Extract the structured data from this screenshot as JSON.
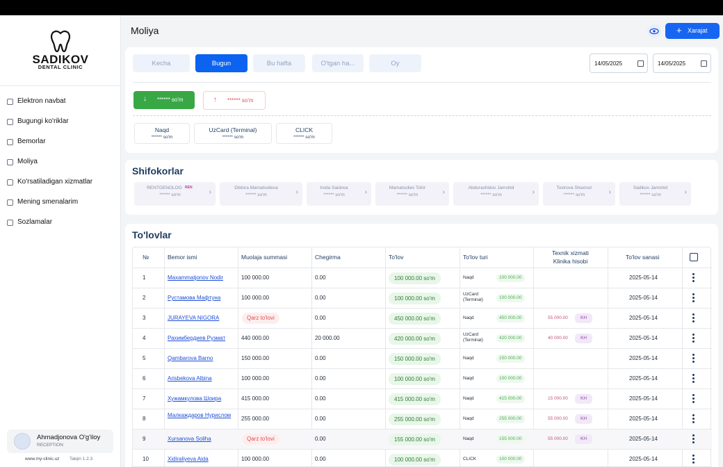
{
  "sidebar": {
    "logo_title": "SADIKOV",
    "logo_subtitle": "DENTAL CLINIC",
    "menu": [
      "Elektron navbat",
      "Bugungi ko'riklar",
      "Bemorlar",
      "Moliya",
      "Ko'rsatiladigan xizmatlar",
      "Mening smenalarim",
      "Sozlamalar"
    ],
    "user": {
      "name": "Ahmadjonova O'g'iloy",
      "role": "RECEPTION"
    },
    "footer": {
      "site": "www.my-clinic.uz",
      "version": "Talqin 1.2.3"
    }
  },
  "header": {
    "title": "Moliya",
    "button": "Xarajat"
  },
  "filters": {
    "periods": [
      "Kecha",
      "Bugun",
      "Bu hafta",
      "O'tgan ha...",
      "Oy"
    ],
    "date_from": "14/05/2025",
    "date_to": "14/05/2025"
  },
  "totals": {
    "income": "****** so'm",
    "expense": "****** so'm"
  },
  "payment_types": [
    {
      "name": "Naqd",
      "amount": "****** so'm"
    },
    {
      "name": "UzCard (Terminal)",
      "amount": "****** so'm"
    },
    {
      "name": "CLICK",
      "amount": "****** so'm"
    }
  ],
  "doctors": {
    "title": "Shifokorlar",
    "items": [
      {
        "name": "RENTGENOLOG",
        "badge": "REN",
        "amount": "****** so'm"
      },
      {
        "name": "Dildora Mamatsolieva",
        "amount": "****** so'm"
      },
      {
        "name": "Iroda Saidova",
        "amount": "****** so'm"
      },
      {
        "name": "Mamatsoliev Tohir",
        "amount": "****** so'm"
      },
      {
        "name": "Abdurashidov Jamshid",
        "amount": "****** so'm"
      },
      {
        "name": "Toxirova Shaxnoz",
        "amount": "****** so'm"
      },
      {
        "name": "Sadikov Jamshid",
        "amount": "****** so'm"
      }
    ]
  },
  "payments": {
    "title": "To'lovlar",
    "columns": [
      "№",
      "Bemor ismi",
      "Muolaja summasi",
      "Chegirma",
      "To'lov",
      "To'lov turi",
      [
        "Texnik xizmati",
        "Klinika hisobi"
      ],
      "To'lov sanasi"
    ],
    "rows": [
      {
        "no": "1",
        "patient": "Maxammatjonov Nodir",
        "sum": "100 000.00",
        "discount": "0.00",
        "payment": "100 000.00 so'm",
        "type": "Naqd",
        "type_amount": "100 000.00",
        "date": "2025-05-14"
      },
      {
        "no": "2",
        "patient": "Рустамова Мафтуна",
        "sum": "100 000.00",
        "discount": "0.00",
        "payment": "100 000.00 so'm",
        "type": "UzCard (Terminal)",
        "type_amount": "100 000.00",
        "date": "2025-05-14"
      },
      {
        "no": "3",
        "patient": "JURAYEVA NIGORA",
        "debt": "Qarz to'lovi",
        "discount": "0.00",
        "payment": "450 000.00 so'm",
        "type": "Naqd",
        "type_amount": "450 000.00",
        "tech_amount": "55 000.00",
        "tech_code": "KH",
        "date": "2025-05-14"
      },
      {
        "no": "4",
        "patient": "Рахимбердиев Рузмат",
        "sum": "440 000.00",
        "discount": "20 000.00",
        "payment": "420 000.00 so'm",
        "type": "UzCard (Terminal)",
        "type_amount": "420 000.00",
        "tech_amount": "40 000.00",
        "tech_code": "KH",
        "date": "2025-05-14"
      },
      {
        "no": "5",
        "patient": "Qambarova Barno",
        "sum": "150 000.00",
        "discount": "0.00",
        "payment": "150 000.00 so'm",
        "type": "Naqd",
        "type_amount": "150 000.00",
        "date": "2025-05-14"
      },
      {
        "no": "6",
        "patient": "Arisbekova Albina",
        "sum": "100 000.00",
        "discount": "0.00",
        "payment": "100 000.00 so'm",
        "type": "Naqd",
        "type_amount": "100 000.00",
        "date": "2025-05-14"
      },
      {
        "no": "7",
        "patient": "Хужамкулова Шоира",
        "sum": "415 000.00",
        "discount": "0.00",
        "payment": "415 000.00 so'm",
        "type": "Naqd",
        "type_amount": "415 000.00",
        "tech_amount": "15 000.00",
        "tech_code": "KH",
        "date": "2025-05-14"
      },
      {
        "no": "8",
        "patient": "Малкаждаров Нурислом",
        "sum": "255 000.00",
        "discount": "0.00",
        "payment": "255 000.00 so'm",
        "type": "Naqd",
        "type_amount": "255 000.00",
        "tech_amount": "55 000.00",
        "tech_code": "KH",
        "date": "2025-05-14"
      },
      {
        "no": "9",
        "patient": "Xursanova Soliha",
        "debt": "Qarz to'lovi",
        "discount": "0.00",
        "payment": "155 000.00 so'm",
        "type": "Naqd",
        "type_amount": "155 000.00",
        "tech_amount": "55 000.00",
        "tech_code": "KH",
        "date": "2025-05-14"
      },
      {
        "no": "10",
        "patient": "Xidiraliyeva Aida",
        "sum": "100 000.00",
        "discount": "0.00",
        "payment": "100 000.00 so'm",
        "type": "CLICK",
        "type_amount": "100 000.00",
        "date": "2025-05-14"
      }
    ]
  }
}
